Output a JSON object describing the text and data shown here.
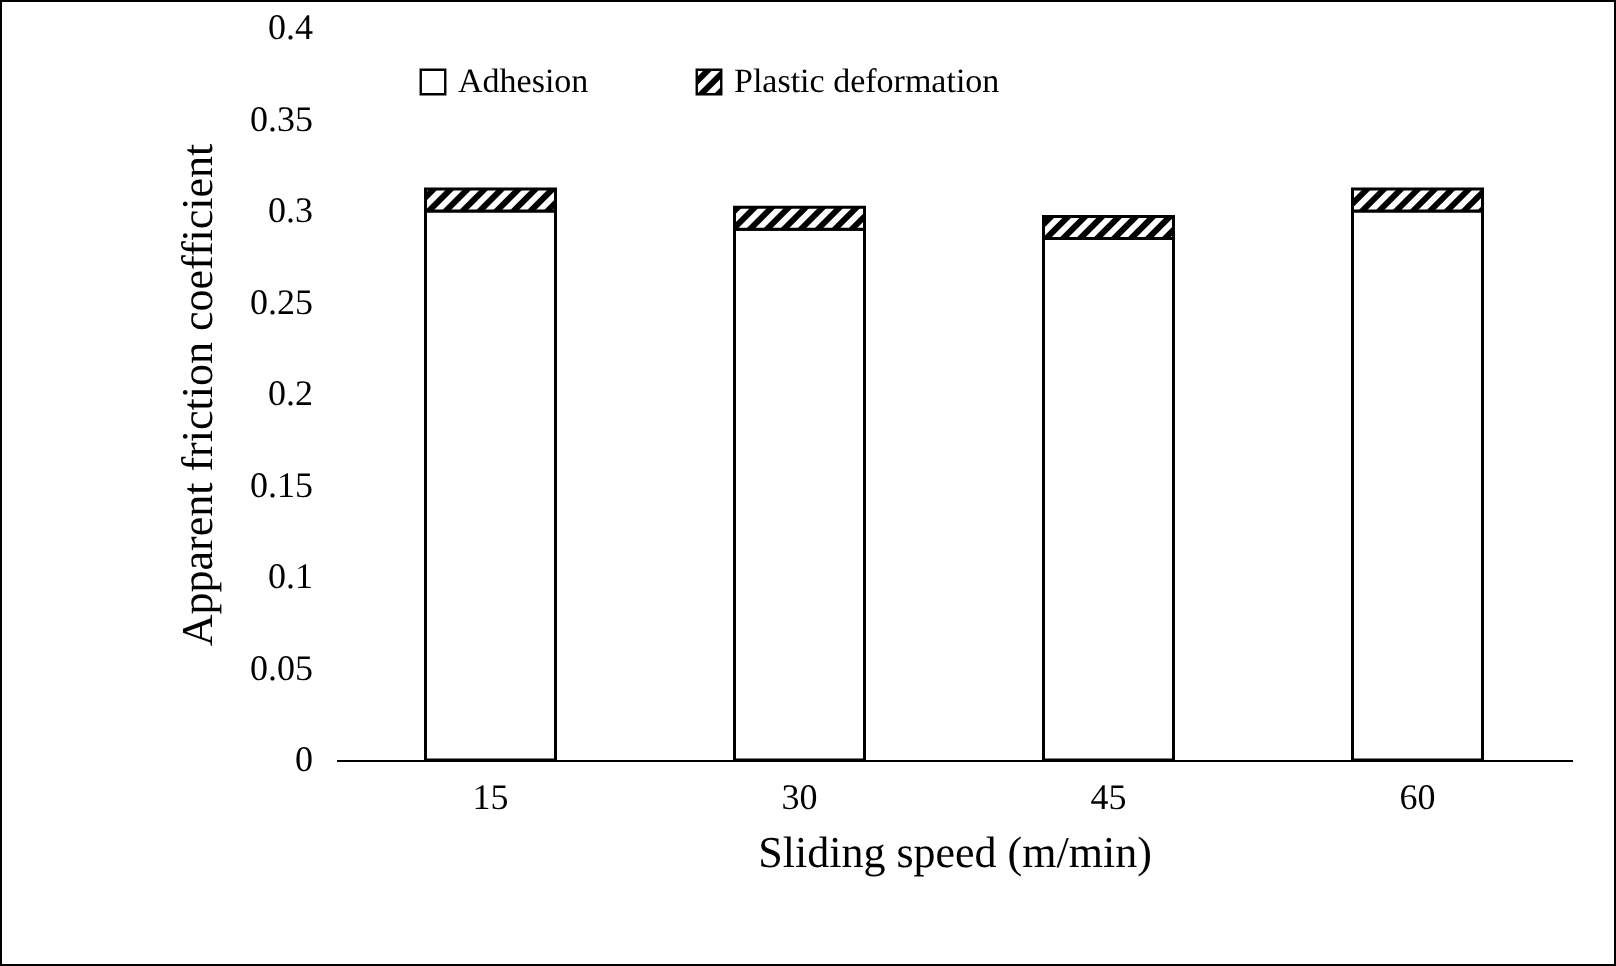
{
  "chart_data": {
    "type": "bar",
    "stacked": true,
    "xlabel": "Sliding speed (m/min)",
    "ylabel": "Apparent friction coefficient",
    "categories": [
      "15",
      "30",
      "45",
      "60"
    ],
    "series": [
      {
        "name": "Adhesion",
        "color": "#ffffff",
        "values": [
          0.3,
          0.29,
          0.285,
          0.3
        ]
      },
      {
        "name": "Plastic deformation",
        "color": "#000000",
        "values": [
          0.012,
          0.012,
          0.012,
          0.012
        ]
      }
    ],
    "ylim": [
      0,
      0.4
    ],
    "yticks": [
      0,
      0.05,
      0.1,
      0.15,
      0.2,
      0.25,
      0.3,
      0.35,
      0.4
    ],
    "grid": false,
    "legend": "top left"
  }
}
